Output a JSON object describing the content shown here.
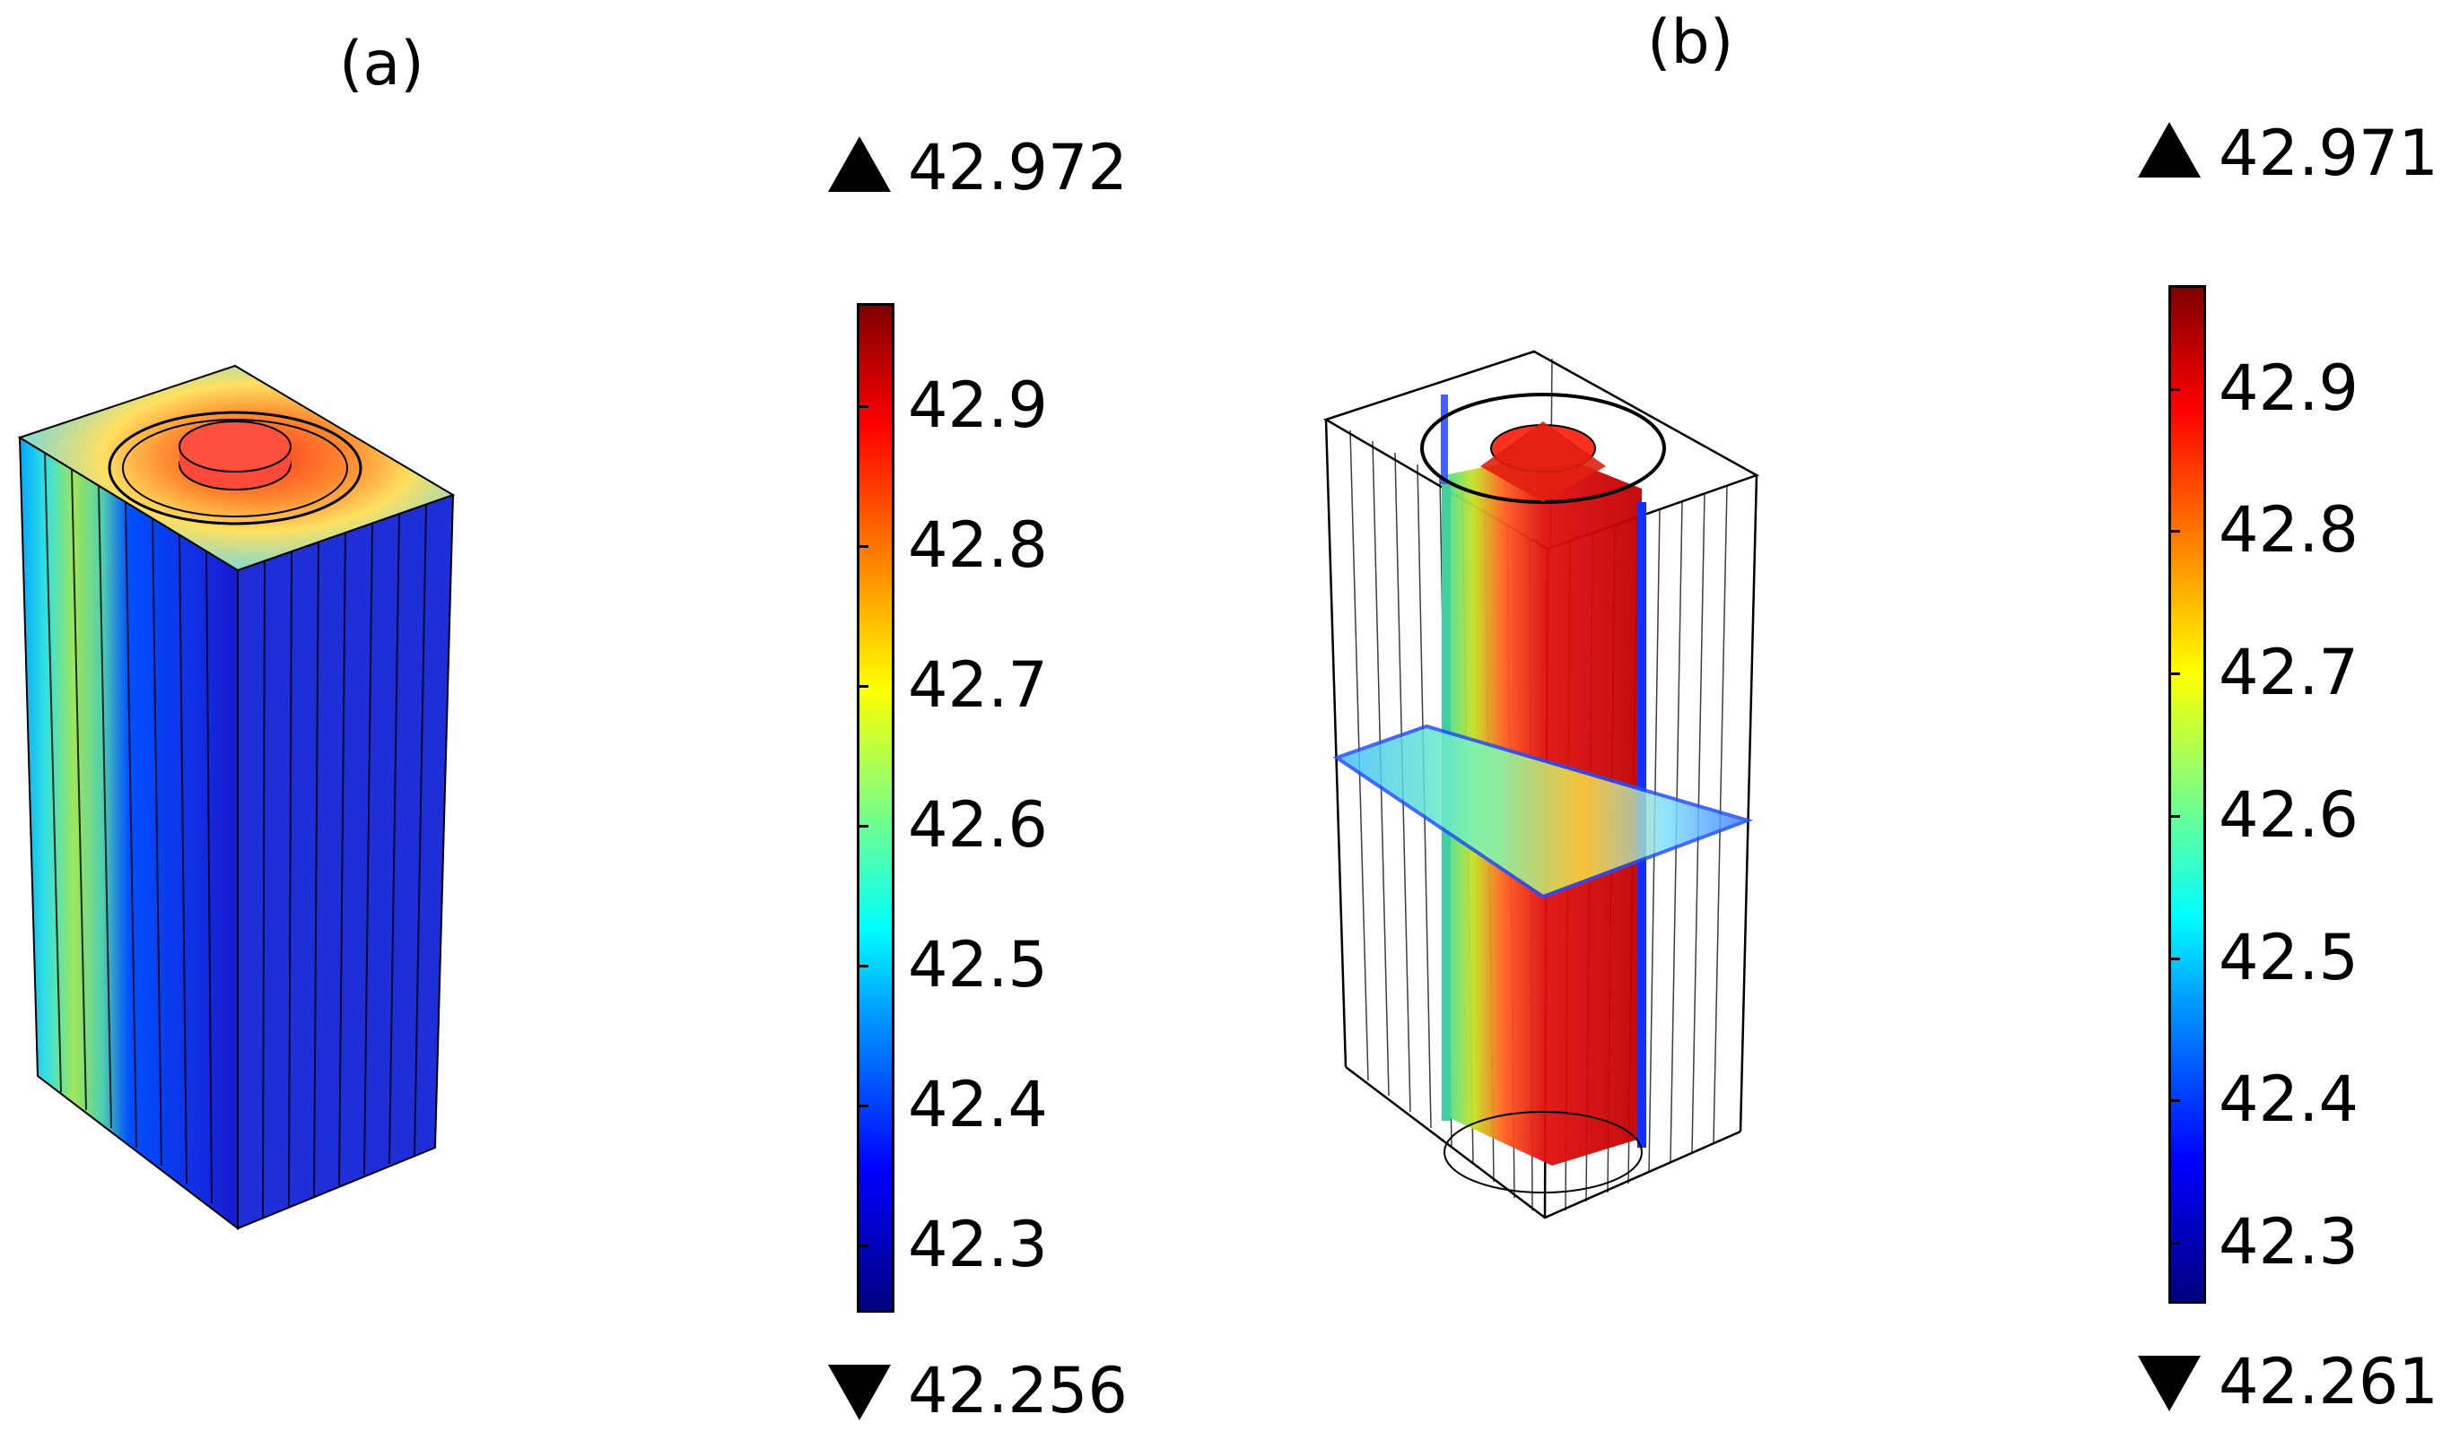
{
  "panels": [
    {
      "label": "(a)",
      "colorbar": {
        "max": "42.972",
        "min": "42.256",
        "ticks": [
          "42.9",
          "42.8",
          "42.7",
          "42.6",
          "42.5",
          "42.4",
          "42.3"
        ],
        "tick_values": [
          42.9,
          42.8,
          42.7,
          42.6,
          42.5,
          42.4,
          42.3
        ],
        "range": [
          42.256,
          42.972
        ]
      }
    },
    {
      "label": "(b)",
      "colorbar": {
        "max": "42.971",
        "min": "42.261",
        "ticks": [
          "42.9",
          "42.8",
          "42.7",
          "42.6",
          "42.5",
          "42.4",
          "42.3"
        ],
        "tick_values": [
          42.9,
          42.8,
          42.7,
          42.6,
          42.5,
          42.4,
          42.3
        ],
        "range": [
          42.261,
          42.971
        ]
      }
    }
  ],
  "colormap": [
    "#00007f",
    "#0000ff",
    "#00a0ff",
    "#00ffff",
    "#7fff7f",
    "#ffff00",
    "#ff7f00",
    "#ff0000",
    "#7f0000"
  ]
}
